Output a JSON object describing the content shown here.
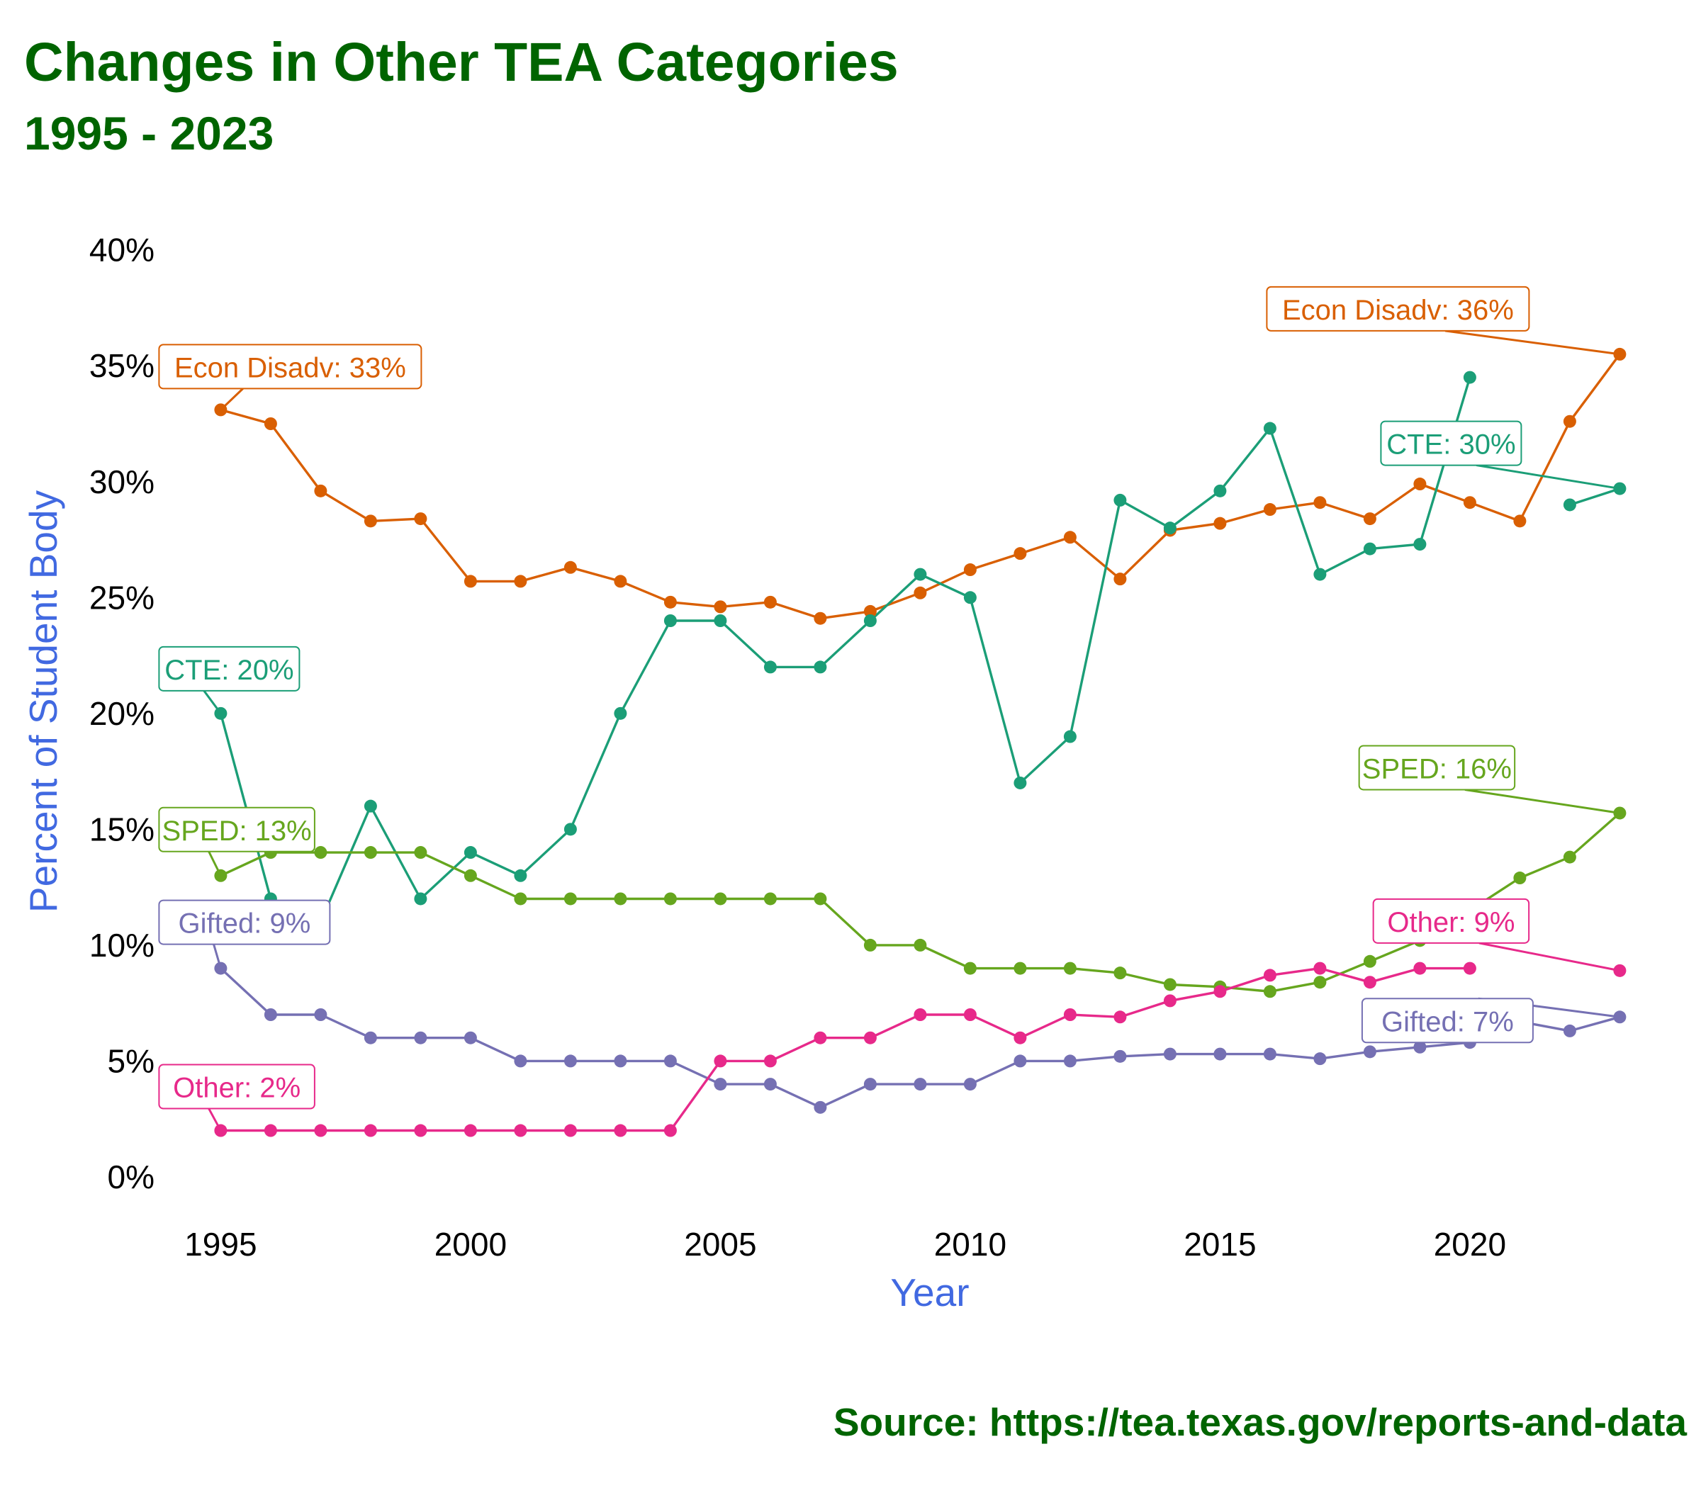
{
  "chart_data": {
    "type": "line",
    "title": "Changes in Other TEA Categories",
    "subtitle": "1995 - 2023",
    "caption": "Source:  https://tea.texas.gov/reports-and-data",
    "xlabel": "Year",
    "ylabel": "Percent of Student Body",
    "xlim": [
      1994.2,
      2024.2
    ],
    "ylim": [
      -1.5,
      41
    ],
    "x_ticks": [
      1995,
      2000,
      2005,
      2010,
      2015,
      2020
    ],
    "y_ticks": [
      0,
      5,
      10,
      15,
      20,
      25,
      30,
      35,
      40
    ],
    "y_tick_labels": [
      "0%",
      "5%",
      "10%",
      "15%",
      "20%",
      "25%",
      "30%",
      "35%",
      "40%"
    ],
    "grid": false,
    "legend": "none",
    "colors": {
      "title": "#006400",
      "axis_title": "#4169E1",
      "tick": "#000000"
    },
    "x": [
      1995,
      1996,
      1997,
      1998,
      1999,
      2000,
      2001,
      2002,
      2003,
      2004,
      2005,
      2006,
      2007,
      2008,
      2009,
      2010,
      2011,
      2012,
      2013,
      2014,
      2015,
      2016,
      2017,
      2018,
      2019,
      2020,
      2021,
      2022,
      2023
    ],
    "series": [
      {
        "name": "Econ Disadv",
        "color": "#D95F02",
        "values": [
          33.1,
          32.5,
          29.6,
          28.3,
          28.4,
          25.7,
          25.7,
          26.3,
          25.7,
          24.8,
          24.6,
          24.8,
          24.1,
          24.4,
          25.2,
          26.2,
          26.9,
          27.6,
          25.8,
          27.9,
          28.2,
          28.8,
          29.1,
          28.4,
          29.9,
          29.1,
          28.3,
          32.6,
          35.5
        ]
      },
      {
        "name": "CTE",
        "color": "#1B9E77",
        "values": [
          20,
          12,
          11,
          16,
          12,
          14,
          13,
          15,
          20,
          24,
          24,
          22,
          22,
          24,
          26,
          25,
          17,
          19,
          29.2,
          28,
          29.6,
          32.3,
          26,
          27.1,
          27.3,
          34.5,
          null,
          29,
          29.7
        ]
      },
      {
        "name": "SPED",
        "color": "#66A61E",
        "values": [
          13,
          14,
          14,
          14,
          14,
          13,
          12,
          12,
          12,
          12,
          12,
          12,
          12,
          10,
          10,
          9,
          9,
          9,
          8.8,
          8.3,
          8.2,
          8,
          8.4,
          9.3,
          10.2,
          11.5,
          12.9,
          13.8,
          15.7
        ]
      },
      {
        "name": "Gifted",
        "color": "#7570B3",
        "values": [
          9,
          7,
          7,
          6,
          6,
          6,
          5,
          5,
          5,
          5,
          4,
          4,
          3,
          4,
          4,
          4,
          5,
          5,
          5.2,
          5.3,
          5.3,
          5.3,
          5.1,
          5.4,
          5.6,
          5.8,
          6.7,
          6.3,
          6.9
        ]
      },
      {
        "name": "Other",
        "color": "#E7298A",
        "values": [
          2,
          2,
          2,
          2,
          2,
          2,
          2,
          2,
          2,
          2,
          5,
          5,
          6,
          6,
          7,
          7,
          6,
          7,
          6.9,
          7.6,
          8,
          8.7,
          9,
          8.4,
          9,
          9,
          null,
          null,
          8.9
        ]
      }
    ],
    "annotations": [
      {
        "text": "Econ Disadv: 33%",
        "series": "Econ Disadv",
        "x": 1995,
        "y": 33.1,
        "side": "start",
        "color": "#D95F02"
      },
      {
        "text": "CTE: 20%",
        "series": "CTE",
        "x": 1995,
        "y": 20,
        "side": "start",
        "color": "#1B9E77"
      },
      {
        "text": "SPED: 13%",
        "series": "SPED",
        "x": 1995,
        "y": 13,
        "side": "start",
        "color": "#66A61E"
      },
      {
        "text": "Gifted: 9%",
        "series": "Gifted",
        "x": 1995,
        "y": 9,
        "side": "start",
        "color": "#7570B3"
      },
      {
        "text": "Other: 2%",
        "series": "Other",
        "x": 1995,
        "y": 2,
        "side": "start",
        "color": "#E7298A"
      },
      {
        "text": "Econ Disadv: 36%",
        "series": "Econ Disadv",
        "x": 2023,
        "y": 35.5,
        "side": "end",
        "color": "#D95F02"
      },
      {
        "text": "CTE: 30%",
        "series": "CTE",
        "x": 2023,
        "y": 29.7,
        "side": "end",
        "color": "#1B9E77"
      },
      {
        "text": "SPED: 16%",
        "series": "SPED",
        "x": 2023,
        "y": 15.7,
        "side": "end",
        "color": "#66A61E"
      },
      {
        "text": "Other: 9%",
        "series": "Other",
        "x": 2023,
        "y": 8.9,
        "side": "end",
        "color": "#E7298A"
      },
      {
        "text": "Gifted: 7%",
        "series": "Gifted",
        "x": 2023,
        "y": 6.9,
        "side": "end",
        "color": "#7570B3"
      }
    ]
  }
}
